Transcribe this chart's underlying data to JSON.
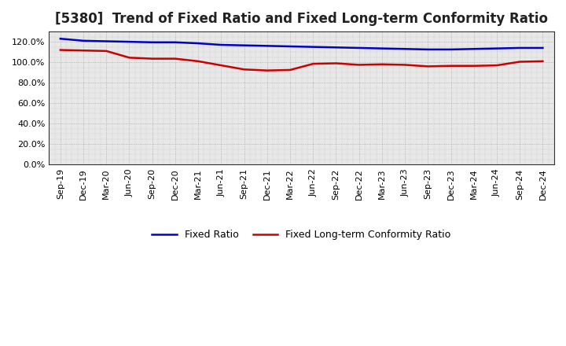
{
  "title": "[5380]  Trend of Fixed Ratio and Fixed Long-term Conformity Ratio",
  "x_labels": [
    "Sep-19",
    "Dec-19",
    "Mar-20",
    "Jun-20",
    "Sep-20",
    "Dec-20",
    "Mar-21",
    "Jun-21",
    "Sep-21",
    "Dec-21",
    "Mar-22",
    "Jun-22",
    "Sep-22",
    "Dec-22",
    "Mar-23",
    "Jun-23",
    "Sep-23",
    "Dec-23",
    "Mar-24",
    "Jun-24",
    "Sep-24",
    "Dec-24"
  ],
  "fixed_ratio": [
    123.0,
    121.0,
    120.5,
    120.0,
    119.5,
    119.5,
    118.5,
    117.0,
    116.5,
    116.0,
    115.5,
    115.0,
    114.5,
    114.0,
    113.5,
    113.0,
    112.5,
    112.5,
    113.0,
    113.5,
    114.0,
    114.0
  ],
  "fixed_lt_ratio": [
    112.0,
    111.5,
    111.0,
    104.5,
    103.5,
    103.5,
    101.0,
    97.0,
    93.0,
    92.0,
    92.5,
    98.5,
    99.0,
    97.5,
    98.0,
    97.5,
    96.0,
    96.5,
    96.5,
    97.0,
    100.5,
    101.0
  ],
  "fixed_ratio_color": "#0000CC",
  "fixed_lt_ratio_color": "#CC0000",
  "ylim": [
    0,
    130
  ],
  "yticks": [
    0,
    20,
    40,
    60,
    80,
    100,
    120
  ],
  "plot_bg_color": "#E8E8E8",
  "fig_bg_color": "#FFFFFF",
  "grid_color": "#777777",
  "legend_fixed_ratio": "Fixed Ratio",
  "legend_fixed_lt_ratio": "Fixed Long-term Conformity Ratio",
  "title_fontsize": 12,
  "axis_fontsize": 8,
  "legend_fontsize": 9
}
